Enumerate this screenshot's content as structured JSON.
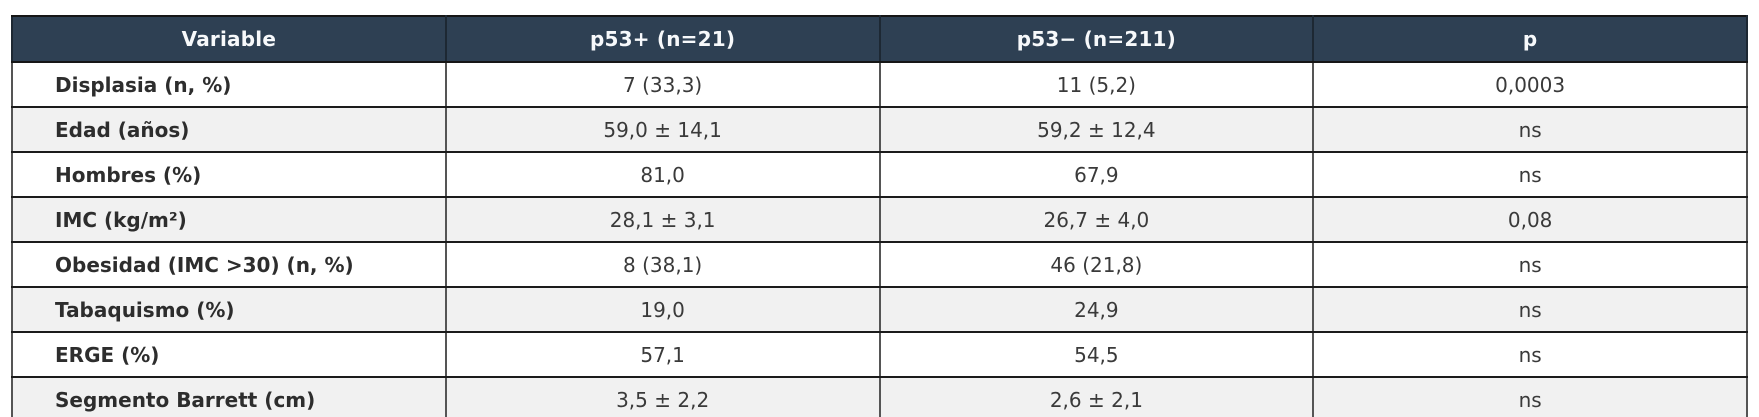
{
  "chart_data": {
    "type": "table",
    "title": "",
    "columns": [
      "Variable",
      "p53+ (n=21)",
      "p53− (n=211)",
      "p"
    ],
    "rows": [
      [
        "Displasia (n, %)",
        "7 (33,3)",
        "11 (5,2)",
        "0,0003"
      ],
      [
        "Edad (años)",
        "59,0 ± 14,1",
        "59,2 ± 12,4",
        "ns"
      ],
      [
        "Hombres (%)",
        "81,0",
        "67,9",
        "ns"
      ],
      [
        "IMC (kg/m²)",
        "28,1 ± 3,1",
        "26,7 ± 4,0",
        "0,08"
      ],
      [
        "Obesidad (IMC >30) (n, %)",
        "8 (38,1)",
        "46 (21,8)",
        "ns"
      ],
      [
        "Tabaquismo (%)",
        "19,0",
        "24,9",
        "ns"
      ],
      [
        "ERGE (%)",
        "57,1",
        "54,5",
        "ns"
      ],
      [
        "Segmento Barrett (cm)",
        "3,5 ± 2,2",
        "2,6 ± 2,1",
        "ns"
      ]
    ],
    "layout": {
      "header_position": "top",
      "row_striping": "white-then-gray",
      "value_alignment": "center",
      "label_alignment": "left"
    }
  },
  "colors": {
    "header_background": "#2e4053",
    "header_text": "#f7f9fb",
    "stripe_gray": "#f1f1f1",
    "stripe_white": "#ffffff",
    "horizontal_border": "#1b1b1b",
    "vertical_border": "#555555",
    "body_text": "#3a3a3a",
    "label_text": "#2d2d2d"
  }
}
